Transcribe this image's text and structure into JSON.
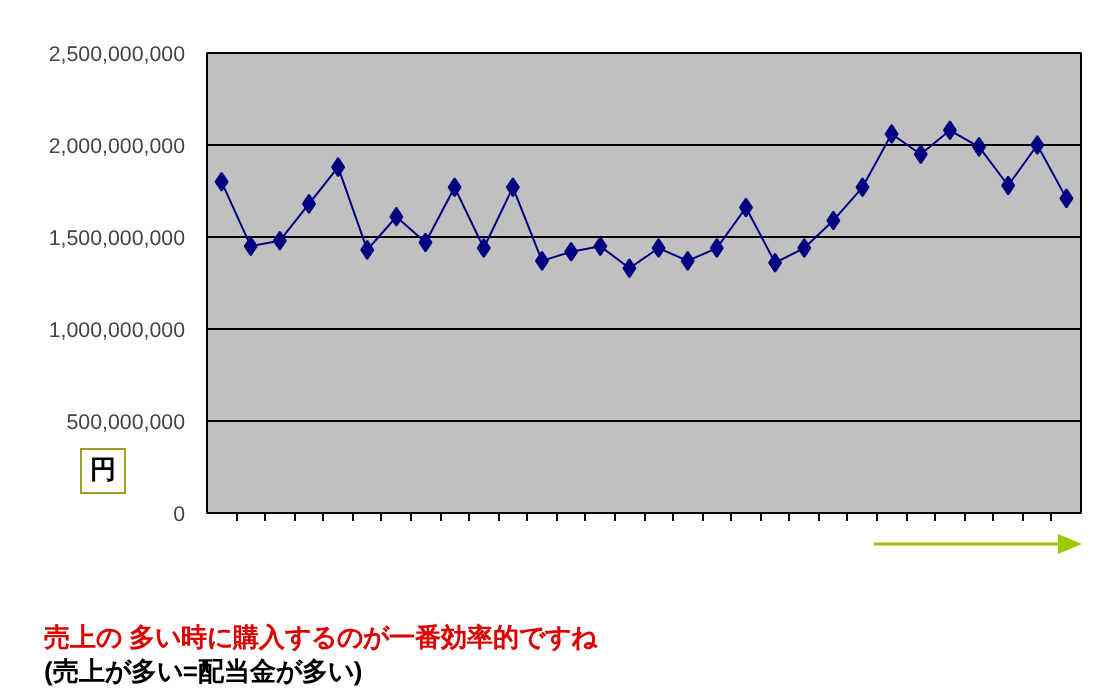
{
  "chart_data": {
    "type": "line",
    "ylabel": "円",
    "categories": [
      null,
      null,
      null,
      null,
      null,
      null,
      null,
      null,
      null,
      null,
      null,
      null,
      null,
      null,
      null,
      null,
      null,
      null,
      null,
      null,
      null,
      null,
      null,
      null,
      null,
      null,
      null,
      null,
      null,
      null
    ],
    "series": [
      {
        "color": "#000080",
        "values": [
          1800000000,
          1450000000,
          1480000000,
          1680000000,
          1880000000,
          1430000000,
          1610000000,
          1470000000,
          1770000000,
          1440000000,
          1770000000,
          1370000000,
          1420000000,
          1450000000,
          1330000000,
          1440000000,
          1370000000,
          1440000000,
          1660000000,
          1360000000,
          1440000000,
          1590000000,
          1770000000,
          2060000000,
          1950000000,
          2080000000,
          1990000000,
          1780000000,
          2000000000,
          1710000000
        ]
      }
    ],
    "ylim": [
      0,
      2500000000
    ],
    "yticks": [
      0,
      {
        "value": 500000000,
        "label": "500,000,000"
      },
      {
        "value": 1000000000,
        "label": "1,000,000,000"
      },
      {
        "value": 1500000000,
        "label": "1,500,000,000"
      },
      {
        "value": 2000000000,
        "label": "2,000,000,000"
      },
      {
        "value": 2500000000,
        "label": "2,500,000,000"
      }
    ],
    "grid": "y",
    "marker": "diamond",
    "line_style": "solid",
    "tick_labels": "y",
    "annotations": [
      "売上の 多い時に購入するのが一番効率的ですね",
      "(売上が多い=配当金が多い)"
    ]
  }
}
